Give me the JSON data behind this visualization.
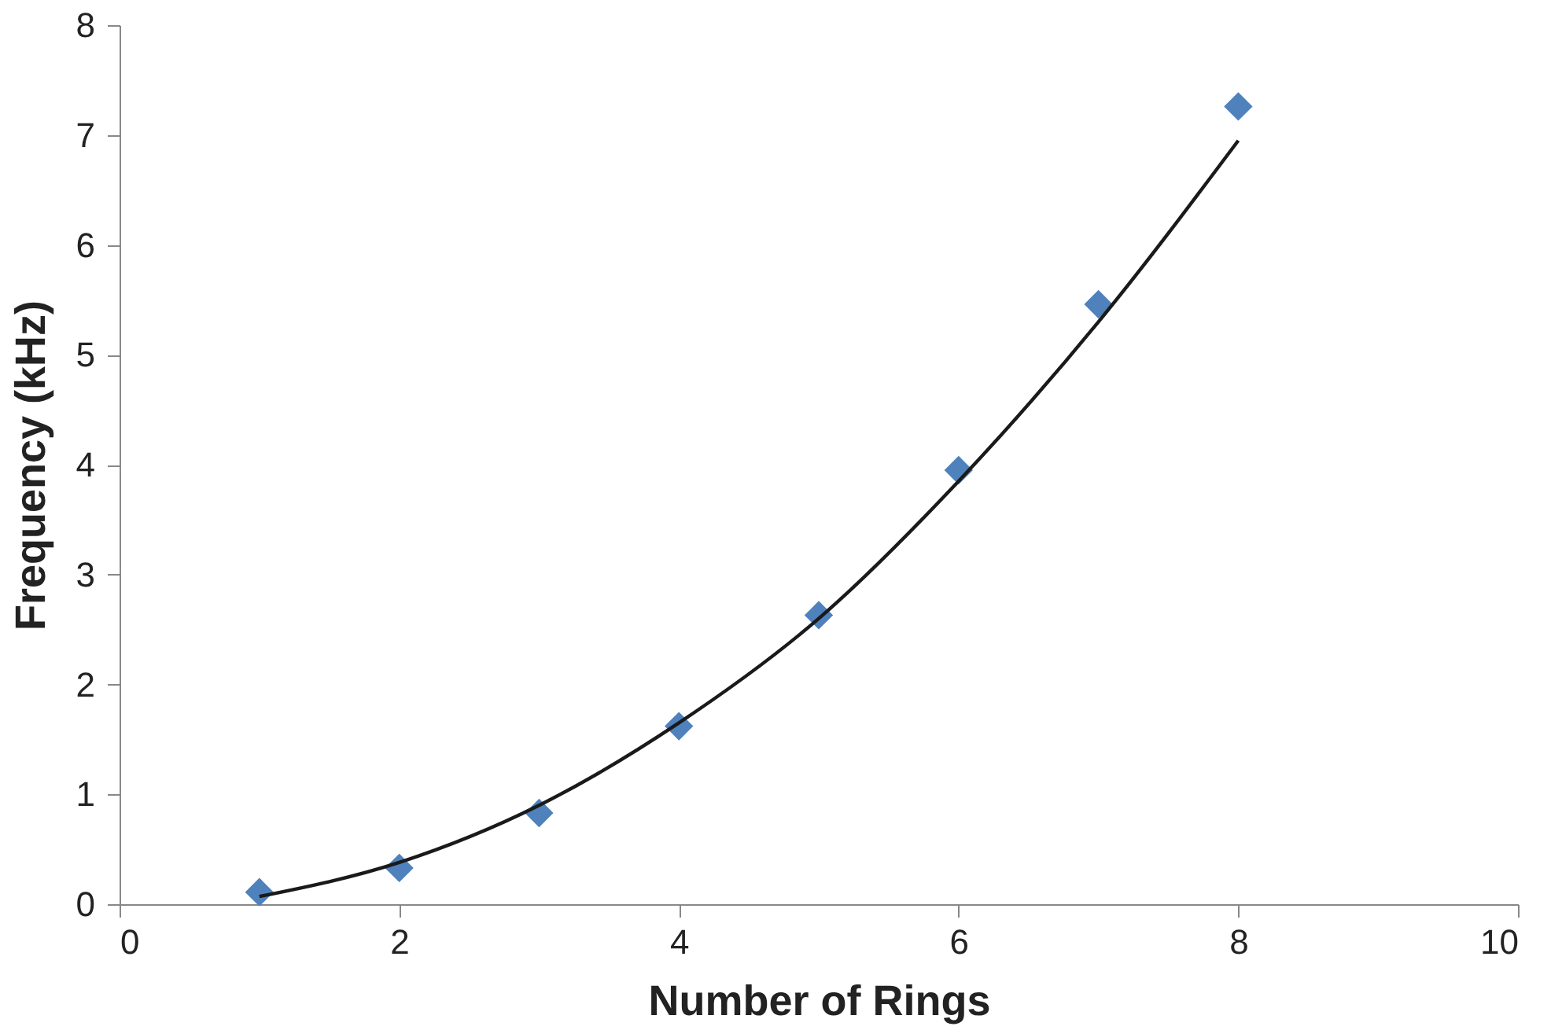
{
  "chart_data": {
    "type": "scatter",
    "xlabel": "Number of Rings",
    "ylabel": "Frequency (kHz)",
    "x": [
      1,
      2,
      3,
      4,
      5,
      6,
      7,
      8
    ],
    "series": [
      {
        "color": "#4f81bd",
        "marker": "diamond",
        "values": [
          0.11,
          0.33,
          0.83,
          1.62,
          2.63,
          3.95,
          5.46,
          7.26
        ]
      },
      {
        "type": "line",
        "color": "#1a1a1a",
        "marker": "none",
        "x": [
          1,
          2,
          3,
          4,
          5,
          6,
          7,
          8
        ],
        "values": [
          0.07,
          0.38,
          0.9,
          1.65,
          2.6,
          3.85,
          5.3,
          6.95
        ]
      }
    ],
    "xlim": [
      0,
      10
    ],
    "xticks": [
      0,
      2,
      4,
      6,
      8,
      10
    ],
    "ylim": [
      0,
      8
    ],
    "yticks": [
      0,
      1,
      2,
      3,
      4,
      5,
      6,
      7,
      8
    ],
    "line_style": "solid"
  }
}
